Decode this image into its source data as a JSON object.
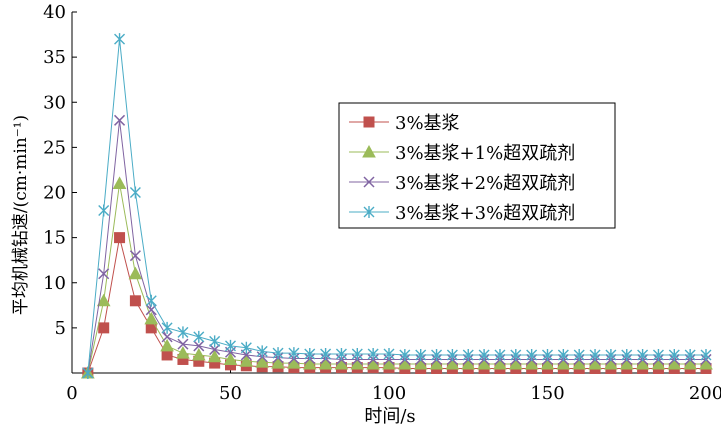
{
  "chart_data": {
    "type": "line",
    "xlabel": "时间/s",
    "ylabel": "平均机械钻速/(cm·min⁻¹)",
    "xlim": [
      0,
      200
    ],
    "ylim": [
      0,
      40
    ],
    "xticks": [
      0,
      50,
      100,
      150,
      200
    ],
    "yticks": [
      5,
      10,
      15,
      20,
      25,
      30,
      35,
      40
    ],
    "grid": false,
    "legend_position": "right",
    "x": [
      5,
      10,
      15,
      20,
      25,
      30,
      35,
      40,
      45,
      50,
      55,
      60,
      65,
      70,
      75,
      80,
      85,
      90,
      95,
      100,
      105,
      110,
      115,
      120,
      125,
      130,
      135,
      140,
      145,
      150,
      155,
      160,
      165,
      170,
      175,
      180,
      185,
      190,
      195,
      200
    ],
    "series": [
      {
        "name": "3%基浆",
        "color": "#c0504d",
        "marker": "square",
        "values": [
          0,
          5,
          15,
          8,
          5,
          2,
          1.5,
          1.3,
          1.1,
          0.9,
          0.8,
          0.7,
          0.7,
          0.6,
          0.6,
          0.6,
          0.6,
          0.6,
          0.6,
          0.6,
          0.5,
          0.5,
          0.5,
          0.5,
          0.5,
          0.5,
          0.5,
          0.5,
          0.5,
          0.5,
          0.5,
          0.5,
          0.5,
          0.5,
          0.5,
          0.5,
          0.5,
          0.5,
          0.5,
          0.5
        ]
      },
      {
        "name": "3%基浆+1%超双疏剂",
        "color": "#9bbb59",
        "marker": "triangle",
        "values": [
          0,
          8,
          21,
          11,
          6,
          3,
          2.2,
          2,
          1.8,
          1.5,
          1.3,
          1.2,
          1.1,
          1.1,
          1,
          1,
          1,
          1,
          1,
          1,
          1,
          1,
          1,
          1,
          1,
          1,
          1,
          1,
          1,
          1,
          1,
          1,
          1,
          1,
          1,
          1,
          1,
          1,
          1,
          1
        ]
      },
      {
        "name": "3%基浆+2%超双疏剂",
        "color": "#8064a2",
        "marker": "x",
        "values": [
          0,
          11,
          28,
          13,
          7,
          4,
          3.2,
          3,
          2.6,
          2.3,
          2,
          1.8,
          1.7,
          1.6,
          1.6,
          1.6,
          1.5,
          1.5,
          1.5,
          1.5,
          1.5,
          1.5,
          1.5,
          1.5,
          1.5,
          1.5,
          1.5,
          1.5,
          1.5,
          1.5,
          1.5,
          1.5,
          1.5,
          1.5,
          1.5,
          1.5,
          1.5,
          1.5,
          1.5,
          1.5
        ]
      },
      {
        "name": "3%基浆+3%超双疏剂",
        "color": "#4bacc6",
        "marker": "asterisk",
        "values": [
          0,
          18,
          37,
          20,
          8,
          5,
          4.5,
          4,
          3.5,
          3,
          2.8,
          2.4,
          2.2,
          2.2,
          2.1,
          2.1,
          2.1,
          2.1,
          2.1,
          2.1,
          2,
          2,
          2,
          2,
          2,
          2,
          2,
          2,
          2,
          2,
          2,
          2,
          2,
          2,
          2,
          2,
          2,
          2,
          2,
          2
        ]
      }
    ]
  }
}
